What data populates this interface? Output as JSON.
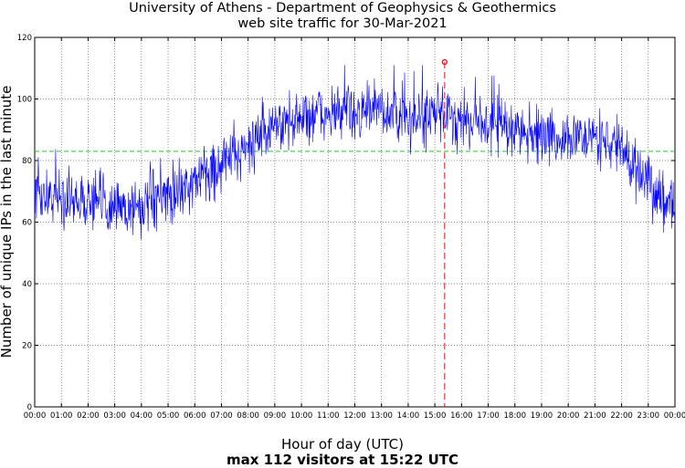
{
  "chart_data": {
    "type": "line",
    "title": "University of Athens - Department of Geophysics & Geothermics",
    "subtitle": "web site traffic for 30-Mar-2021",
    "xlabel": "Hour of day (UTC)",
    "caption": "max 112 visitors at 15:22 UTC",
    "ylabel": "Number of unique IPs in the last minute",
    "xlim": [
      0,
      24
    ],
    "ylim": [
      0,
      120
    ],
    "x_ticks": [
      "00:00",
      "01:00",
      "02:00",
      "03:00",
      "04:00",
      "05:00",
      "06:00",
      "07:00",
      "08:00",
      "09:00",
      "10:00",
      "11:00",
      "12:00",
      "13:00",
      "14:00",
      "15:00",
      "16:00",
      "17:00",
      "18:00",
      "19:00",
      "20:00",
      "21:00",
      "22:00",
      "23:00",
      "00:00"
    ],
    "y_ticks": [
      "0",
      "20",
      "40",
      "60",
      "80",
      "100",
      "120"
    ],
    "grid": true,
    "hourly_mean_visitors": {
      "x": [
        0,
        1,
        2,
        3,
        4,
        5,
        6,
        7,
        8,
        9,
        10,
        11,
        12,
        13,
        14,
        15,
        16,
        17,
        18,
        19,
        20,
        21,
        22,
        23,
        24
      ],
      "y": [
        69,
        68,
        67,
        65,
        65,
        68,
        73,
        79,
        85,
        91,
        94,
        95,
        96,
        96,
        93,
        95,
        94,
        92,
        90,
        88,
        87,
        88,
        84,
        71,
        66
      ]
    },
    "reference_line": {
      "y": 83,
      "color": "#22cc22"
    },
    "maximum": {
      "x": 15.367,
      "y": 112,
      "color": "#ff0000"
    },
    "series_color": "#0000ff"
  }
}
